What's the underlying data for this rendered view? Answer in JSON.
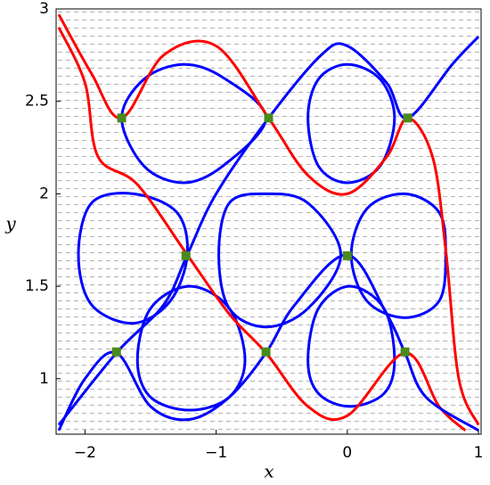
{
  "chart_data": {
    "type": "line",
    "x_label": "x",
    "y_label": "y",
    "xlim": [
      -2.22,
      1.02
    ],
    "ylim": [
      0.7,
      3.0
    ],
    "xticks": [
      {
        "value": -2,
        "label": "−2"
      },
      {
        "value": -1,
        "label": "−1"
      },
      0,
      1
    ],
    "yticks": [
      1,
      1.5,
      2,
      2.5,
      3
    ],
    "series": [
      {
        "color": "#0000ff",
        "style": "closed",
        "x": [
          -1.72,
          -1.55,
          -1.25,
          -0.95,
          -0.62,
          -0.95,
          -1.25,
          -1.55
        ],
        "y": [
          2.41,
          2.62,
          2.7,
          2.63,
          2.41,
          2.15,
          2.06,
          2.15
        ]
      },
      {
        "color": "#0000ff",
        "style": "closed",
        "x": [
          -0.3,
          -0.22,
          0.0,
          0.25,
          0.36,
          0.25,
          0.0,
          -0.22
        ],
        "y": [
          2.41,
          2.62,
          2.7,
          2.62,
          2.41,
          2.15,
          2.06,
          2.15
        ]
      },
      {
        "color": "#0000ff",
        "style": "closed",
        "x": [
          -2.05,
          -1.95,
          -1.63,
          -1.3,
          -1.22,
          -1.35,
          -1.63,
          -1.95
        ],
        "y": [
          1.67,
          1.95,
          2.0,
          1.9,
          1.67,
          1.42,
          1.3,
          1.4
        ]
      },
      {
        "color": "#0000ff",
        "style": "closed",
        "x": [
          -0.98,
          -0.9,
          -0.62,
          -0.3,
          -0.05,
          -0.3,
          -0.62,
          -0.9
        ],
        "y": [
          1.67,
          1.95,
          2.0,
          1.95,
          1.67,
          1.38,
          1.28,
          1.38
        ]
      },
      {
        "color": "#0000ff",
        "style": "closed",
        "x": [
          0.03,
          0.15,
          0.44,
          0.7,
          0.75,
          0.7,
          0.44,
          0.15
        ],
        "y": [
          1.67,
          1.92,
          2.0,
          1.9,
          1.67,
          1.42,
          1.33,
          1.42
        ]
      },
      {
        "color": "#0000ff",
        "style": "closed",
        "x": [
          -1.6,
          -1.5,
          -1.2,
          -0.9,
          -0.78,
          -0.9,
          -1.2,
          -1.5
        ],
        "y": [
          1.1,
          1.38,
          1.5,
          1.38,
          1.1,
          0.9,
          0.83,
          0.9
        ]
      },
      {
        "color": "#0000ff",
        "style": "closed",
        "x": [
          -0.3,
          -0.22,
          0.02,
          0.28,
          0.36,
          0.28,
          0.02,
          -0.22
        ],
        "y": [
          1.1,
          1.38,
          1.5,
          1.38,
          1.1,
          0.92,
          0.85,
          0.92
        ]
      },
      {
        "color": "#ff0000",
        "style": "open",
        "x": [
          -2.2,
          -1.95,
          -1.72,
          -1.4,
          -1.0,
          -0.6,
          -0.3,
          0.0,
          0.3,
          0.46,
          0.65,
          0.75,
          0.85,
          1.0
        ],
        "y": [
          2.97,
          2.65,
          2.41,
          2.75,
          2.8,
          2.41,
          2.1,
          2.0,
          2.2,
          2.41,
          2.2,
          1.7,
          1.0,
          0.75
        ]
      },
      {
        "color": "#ff0000",
        "style": "open",
        "x": [
          -2.2,
          -2.0,
          -1.9,
          -1.6,
          -1.22,
          -0.9,
          -0.62,
          -0.3,
          0.0,
          0.44,
          0.7,
          0.9
        ],
        "y": [
          2.9,
          2.6,
          2.2,
          2.05,
          1.67,
          1.35,
          1.14,
          0.85,
          0.8,
          1.14,
          0.85,
          0.72
        ]
      },
      {
        "color": "#0000ff",
        "style": "open",
        "x": [
          -2.2,
          -1.76,
          -1.4,
          -1.22,
          -1.0,
          -0.6,
          -0.2,
          0.0,
          0.3,
          0.46,
          0.8,
          1.0
        ],
        "y": [
          0.75,
          1.14,
          1.4,
          1.67,
          2.0,
          2.41,
          2.75,
          2.8,
          2.6,
          2.41,
          2.7,
          2.85
        ]
      },
      {
        "color": "#0000ff",
        "style": "open",
        "x": [
          -2.2,
          -2.0,
          -1.76,
          -1.5,
          -1.2,
          -0.9,
          -0.62,
          -0.4,
          0.0,
          0.3,
          0.44,
          0.6,
          1.0
        ],
        "y": [
          0.72,
          1.0,
          1.14,
          0.85,
          0.78,
          0.9,
          1.14,
          1.4,
          1.67,
          1.35,
          1.14,
          0.9,
          0.72
        ]
      },
      {
        "color": "#4a8a1c",
        "style": "points",
        "x": [
          -1.72,
          -0.6,
          0.46,
          -1.23,
          0.0,
          -1.76,
          -0.62,
          0.44
        ],
        "y": [
          2.41,
          2.41,
          2.41,
          1.665,
          1.665,
          1.145,
          1.145,
          1.145
        ]
      }
    ]
  }
}
